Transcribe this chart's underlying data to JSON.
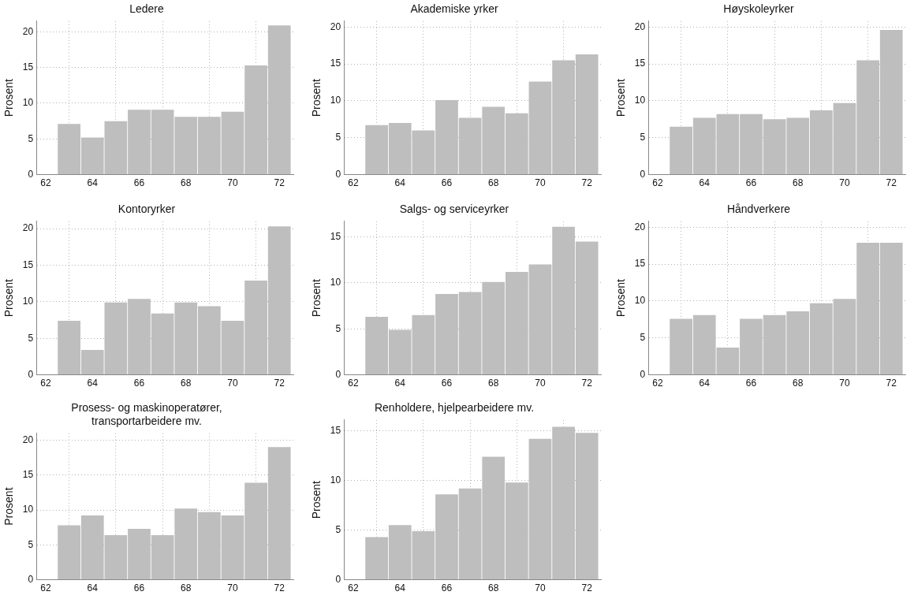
{
  "chart_data": [
    {
      "type": "histogram",
      "title": "Ledere",
      "ylabel": "Prosent",
      "bins": [
        62.5,
        63.5,
        64.5,
        65.5,
        66.5,
        67.5,
        68.5,
        69.5,
        70.5,
        71.5,
        72.5
      ],
      "values": [
        7.1,
        5.2,
        7.5,
        9.1,
        9.1,
        8.1,
        8.1,
        8.8,
        15.3,
        20.9
      ],
      "color": "#bebebe",
      "xlim": [
        61.6,
        72.6
      ],
      "xticks": [
        62,
        64,
        66,
        68,
        70,
        72
      ],
      "ylim": [
        0,
        21.5
      ],
      "yticks": [
        0,
        5,
        10,
        15,
        20
      ],
      "grid": true
    },
    {
      "type": "histogram",
      "title": "Akademiske yrker",
      "ylabel": "Prosent",
      "bins": [
        62.5,
        63.5,
        64.5,
        65.5,
        66.5,
        67.5,
        68.5,
        69.5,
        70.5,
        71.5,
        72.5
      ],
      "values": [
        6.7,
        7.0,
        6.0,
        10.1,
        7.7,
        9.2,
        8.3,
        12.6,
        15.5,
        16.3
      ],
      "color": "#bebebe",
      "xlim": [
        61.6,
        72.6
      ],
      "xticks": [
        62,
        64,
        66,
        68,
        70,
        72
      ],
      "ylim": [
        0,
        20.8
      ],
      "yticks": [
        0,
        5,
        10,
        15,
        20
      ],
      "grid": true
    },
    {
      "type": "histogram",
      "title": "Høyskoleyrker",
      "ylabel": "Prosent",
      "bins": [
        62.5,
        63.5,
        64.5,
        65.5,
        66.5,
        67.5,
        68.5,
        69.5,
        70.5,
        71.5,
        72.5
      ],
      "values": [
        6.5,
        7.7,
        8.2,
        8.2,
        7.5,
        7.7,
        8.7,
        9.7,
        15.5,
        19.6
      ],
      "color": "#bebebe",
      "xlim": [
        61.6,
        72.6
      ],
      "xticks": [
        62,
        64,
        66,
        68,
        70,
        72
      ],
      "ylim": [
        0,
        20.8
      ],
      "yticks": [
        0,
        5,
        10,
        15,
        20
      ],
      "grid": true
    },
    {
      "type": "histogram",
      "title": "Kontoryrker",
      "ylabel": "Prosent",
      "bins": [
        62.5,
        63.5,
        64.5,
        65.5,
        66.5,
        67.5,
        68.5,
        69.5,
        70.5,
        71.5,
        72.5
      ],
      "values": [
        7.4,
        3.4,
        9.9,
        10.4,
        8.4,
        9.9,
        9.4,
        7.4,
        12.9,
        20.3
      ],
      "color": "#bebebe",
      "xlim": [
        61.6,
        72.6
      ],
      "xticks": [
        62,
        64,
        66,
        68,
        70,
        72
      ],
      "ylim": [
        0,
        21
      ],
      "yticks": [
        0,
        5,
        10,
        15,
        20
      ],
      "grid": true
    },
    {
      "type": "histogram",
      "title": "Salgs- og serviceyrker",
      "ylabel": "Prosent",
      "bins": [
        62.5,
        63.5,
        64.5,
        65.5,
        66.5,
        67.5,
        68.5,
        69.5,
        70.5,
        71.5,
        72.5
      ],
      "values": [
        6.3,
        4.9,
        6.5,
        8.8,
        9.0,
        10.1,
        11.2,
        12.0,
        16.1,
        14.5
      ],
      "color": "#bebebe",
      "xlim": [
        61.6,
        72.6
      ],
      "xticks": [
        62,
        64,
        66,
        68,
        70,
        72
      ],
      "ylim": [
        0,
        16.7
      ],
      "yticks": [
        0,
        5,
        10,
        15
      ],
      "grid": true
    },
    {
      "type": "histogram",
      "title": "Håndverkere",
      "ylabel": "Prosent",
      "bins": [
        62.5,
        63.5,
        64.5,
        65.5,
        66.5,
        67.5,
        68.5,
        69.5,
        70.5,
        71.5,
        72.5
      ],
      "values": [
        7.6,
        8.1,
        3.7,
        7.6,
        8.1,
        8.6,
        9.7,
        10.3,
        17.9,
        17.9
      ],
      "color": "#bebebe",
      "xlim": [
        61.6,
        72.6
      ],
      "xticks": [
        62,
        64,
        66,
        68,
        70,
        72
      ],
      "ylim": [
        0,
        20.8
      ],
      "yticks": [
        0,
        5,
        10,
        15,
        20
      ],
      "grid": true
    },
    {
      "type": "histogram",
      "title": "Prosess- og maskinoperatører,\ntransportarbeidere mv.",
      "ylabel": "Prosent",
      "bins": [
        62.5,
        63.5,
        64.5,
        65.5,
        66.5,
        67.5,
        68.5,
        69.5,
        70.5,
        71.5,
        72.5
      ],
      "values": [
        7.8,
        9.2,
        6.4,
        7.3,
        6.4,
        10.2,
        9.7,
        9.2,
        13.9,
        19.0
      ],
      "color": "#bebebe",
      "xlim": [
        61.6,
        72.6
      ],
      "xticks": [
        62,
        64,
        66,
        68,
        70,
        72
      ],
      "ylim": [
        0,
        21
      ],
      "yticks": [
        0,
        5,
        10,
        15,
        20
      ],
      "grid": true
    },
    {
      "type": "histogram",
      "title": "Renholdere, hjelpearbeidere mv.",
      "ylabel": "Prosent",
      "bins": [
        62.5,
        63.5,
        64.5,
        65.5,
        66.5,
        67.5,
        68.5,
        69.5,
        70.5,
        71.5,
        72.5
      ],
      "values": [
        4.3,
        5.5,
        4.9,
        8.6,
        9.2,
        12.4,
        9.8,
        14.2,
        15.4,
        14.8
      ],
      "color": "#bebebe",
      "xlim": [
        61.6,
        72.6
      ],
      "xticks": [
        62,
        64,
        66,
        68,
        70,
        72
      ],
      "ylim": [
        0,
        16.1
      ],
      "yticks": [
        0,
        5,
        10,
        15
      ],
      "grid": true
    }
  ]
}
